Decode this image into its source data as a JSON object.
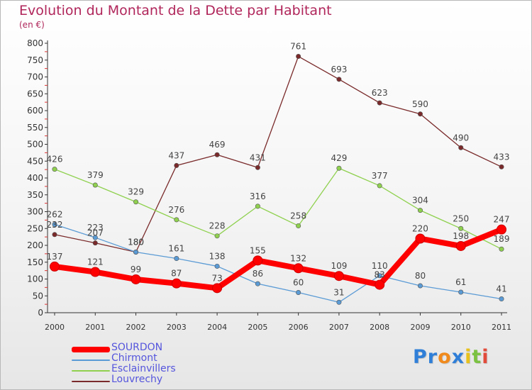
{
  "title": "Evolution du Montant de la Dette par Habitant",
  "subtitle": "(en €)",
  "chart_data": {
    "type": "line",
    "title": "Evolution du Montant de la Dette par Habitant",
    "ylabel": "(en €)",
    "xlabel": "",
    "x": [
      "2000",
      "2001",
      "2002",
      "2003",
      "2004",
      "2005",
      "2006",
      "2007",
      "2008",
      "2009",
      "2010",
      "2011"
    ],
    "ylim": [
      0,
      800
    ],
    "yticks": [
      0,
      50,
      100,
      150,
      200,
      250,
      300,
      350,
      400,
      450,
      500,
      550,
      600,
      650,
      700,
      750,
      800
    ],
    "grid": false,
    "legend_position": "bottom-left",
    "series": [
      {
        "name": "SOURDON",
        "color": "#ff0000",
        "values": [
          137,
          121,
          99,
          87,
          73,
          155,
          132,
          109,
          83,
          220,
          198,
          247
        ],
        "labels": [
          "137",
          "121",
          "99",
          "87",
          "73",
          "155",
          "132",
          "109",
          "83",
          "220",
          "198",
          "247"
        ]
      },
      {
        "name": "Chirmont",
        "color": "#5b9bd5",
        "values": [
          262,
          223,
          180,
          161,
          138,
          86,
          60,
          31,
          110,
          80,
          61,
          41
        ],
        "labels": [
          "262",
          "223",
          "180",
          "161",
          "138",
          "86",
          "60",
          "31",
          "110",
          "80",
          "61",
          "41"
        ]
      },
      {
        "name": "Esclainvillers",
        "color": "#8fd14f",
        "values": [
          426,
          379,
          329,
          276,
          228,
          316,
          258,
          429,
          377,
          304,
          250,
          189
        ],
        "labels": [
          "426",
          "379",
          "329",
          "276",
          "228",
          "316",
          "258",
          "429",
          "377",
          "304",
          "250",
          "189"
        ]
      },
      {
        "name": "Louvrechy",
        "color": "#7a2a2a",
        "values": [
          232,
          207,
          180,
          437,
          469,
          431,
          761,
          693,
          623,
          590,
          490,
          433
        ],
        "labels": [
          "232",
          "207",
          "180",
          "437",
          "469",
          "431",
          "761",
          "693",
          "623",
          "590",
          "490",
          "433"
        ]
      }
    ]
  },
  "logo": {
    "text": "Proxiti",
    "letters": [
      {
        "ch": "P",
        "color": "#2f7fd8"
      },
      {
        "ch": "r",
        "color": "#2f7fd8"
      },
      {
        "ch": "o",
        "color": "#f08a1c"
      },
      {
        "ch": "x",
        "color": "#2f7fd8"
      },
      {
        "ch": "i",
        "color": "#e8c21a"
      },
      {
        "ch": "t",
        "color": "#7cc242"
      },
      {
        "ch": "i",
        "color": "#e24a3a"
      }
    ]
  }
}
